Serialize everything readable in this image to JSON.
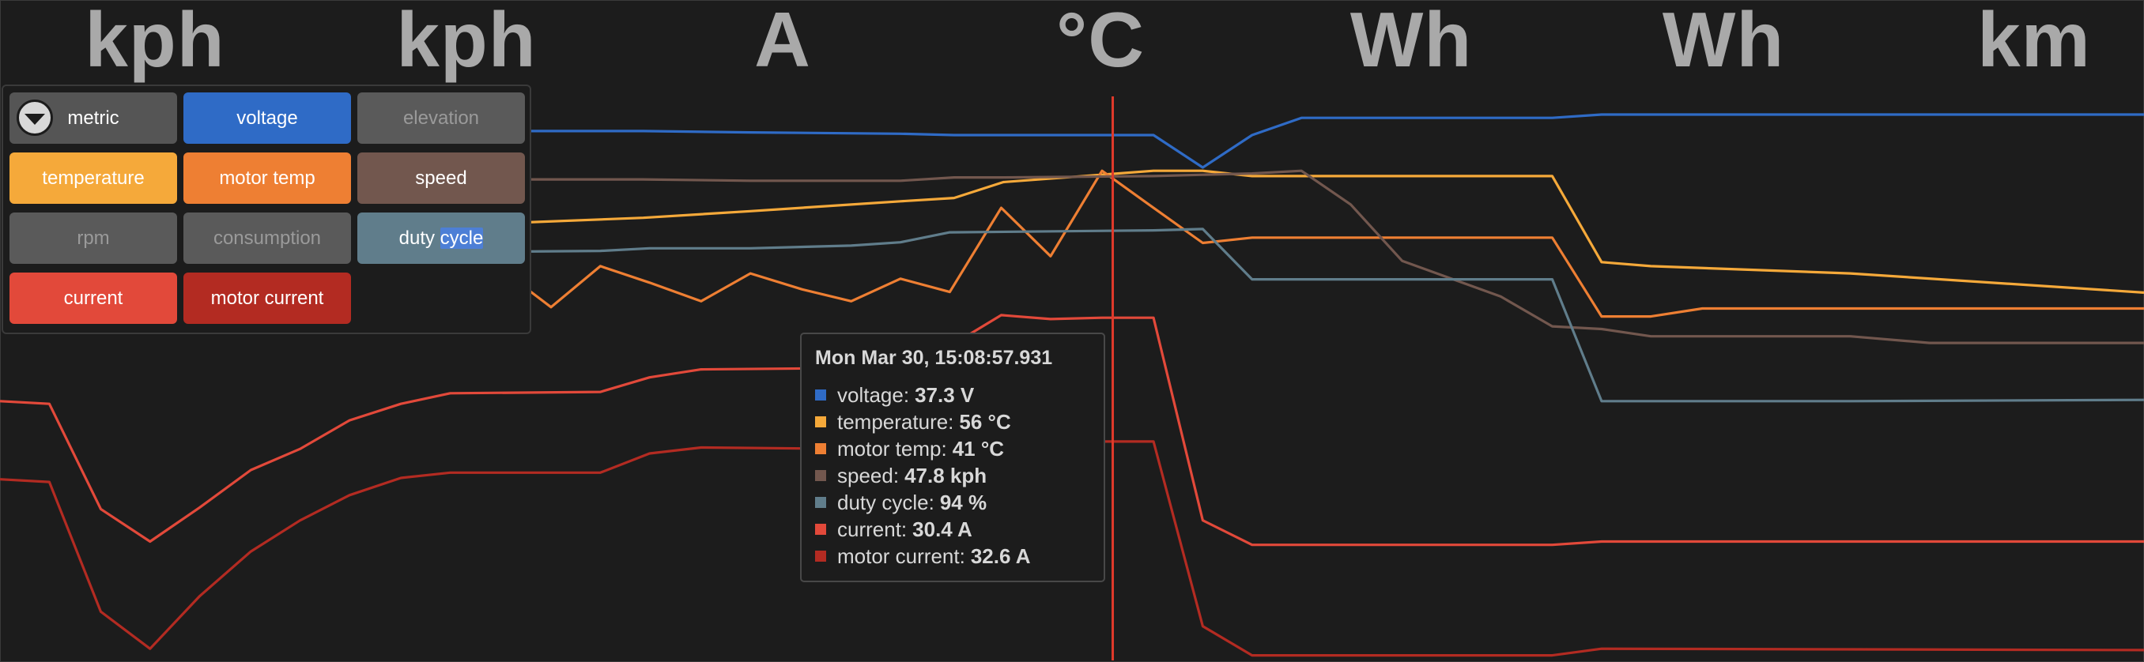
{
  "units": [
    "kph",
    "kph",
    "A",
    "°C",
    "Wh",
    "Wh",
    "km"
  ],
  "legend": {
    "toggle_icon": "chevron-down-circle-icon",
    "items": [
      {
        "label": "metric",
        "color": "#555555",
        "active": true
      },
      {
        "label": "voltage",
        "color": "#2f6bc6",
        "active": true
      },
      {
        "label": "elevation",
        "color": "#5a5a5a",
        "active": false
      },
      {
        "label": "temperature",
        "color": "#f5a93a",
        "active": true
      },
      {
        "label": "motor temp",
        "color": "#ee7f33",
        "active": true
      },
      {
        "label": "speed",
        "color": "#72574e",
        "active": true
      },
      {
        "label": "rpm",
        "color": "#5a5a5a",
        "active": false
      },
      {
        "label": "consumption",
        "color": "#5a5a5a",
        "active": false
      },
      {
        "label": "duty cycle",
        "label_plain": "duty ",
        "label_selected": "cycle",
        "color": "#607d8b",
        "active": true
      },
      {
        "label": "current",
        "color": "#e2493a",
        "active": true
      },
      {
        "label": "motor current",
        "color": "#b32b22",
        "active": true
      }
    ]
  },
  "tooltip": {
    "title": "Mon Mar 30, 15:08:57.931",
    "rows": [
      {
        "name": "voltage:",
        "value": "37.3 V",
        "color": "#2f6bc6"
      },
      {
        "name": "temperature:",
        "value": "56 °C",
        "color": "#f5a93a"
      },
      {
        "name": "motor temp:",
        "value": "41 °C",
        "color": "#ee7f33"
      },
      {
        "name": "speed:",
        "value": "47.8 kph",
        "color": "#72574e"
      },
      {
        "name": "duty cycle:",
        "value": "94 %",
        "color": "#607d8b"
      },
      {
        "name": "current:",
        "value": "30.4 A",
        "color": "#e2493a"
      },
      {
        "name": "motor current:",
        "value": "32.6 A",
        "color": "#b32b22"
      }
    ]
  },
  "chart_data": {
    "type": "line",
    "x_range": [
      0,
      1000
    ],
    "y_range": [
      0,
      100
    ],
    "cursor_x": 519,
    "series": [
      {
        "name": "voltage",
        "color": "#2f6bc6",
        "points": [
          [
            244,
            80.2
          ],
          [
            300,
            80.2
          ],
          [
            350,
            80
          ],
          [
            420,
            79.8
          ],
          [
            445,
            79.6
          ],
          [
            468,
            79.6
          ],
          [
            538,
            79.6
          ],
          [
            561,
            74.7
          ],
          [
            584,
            79.6
          ],
          [
            607,
            82.2
          ],
          [
            724,
            82.2
          ],
          [
            747,
            82.7
          ],
          [
            1000,
            82.7
          ]
        ]
      },
      {
        "name": "temperature",
        "color": "#f5a93a",
        "points": [
          [
            244,
            66.4
          ],
          [
            300,
            67.1
          ],
          [
            350,
            68.1
          ],
          [
            420,
            69.6
          ],
          [
            445,
            70.1
          ],
          [
            468,
            72.5
          ],
          [
            538,
            74.2
          ],
          [
            561,
            74.2
          ],
          [
            584,
            73.4
          ],
          [
            724,
            73.4
          ],
          [
            747,
            60.4
          ],
          [
            770,
            59.8
          ],
          [
            863,
            58.7
          ],
          [
            1000,
            55.8
          ]
        ]
      },
      {
        "name": "motor temp",
        "color": "#ee7f33",
        "points": [
          [
            244,
            56.8
          ],
          [
            257,
            53.6
          ],
          [
            280,
            59.8
          ],
          [
            303,
            57.3
          ],
          [
            327,
            54.5
          ],
          [
            350,
            58.7
          ],
          [
            374,
            56.3
          ],
          [
            397,
            54.5
          ],
          [
            420,
            57.9
          ],
          [
            443,
            55.9
          ],
          [
            467,
            68.6
          ],
          [
            490,
            61.3
          ],
          [
            514,
            74.2
          ],
          [
            538,
            68.6
          ],
          [
            561,
            63.3
          ],
          [
            584,
            64.1
          ],
          [
            724,
            64.1
          ],
          [
            747,
            52.2
          ],
          [
            770,
            52.2
          ],
          [
            794,
            53.4
          ],
          [
            1000,
            53.4
          ]
        ]
      },
      {
        "name": "speed",
        "color": "#72574e",
        "points": [
          [
            244,
            72.9
          ],
          [
            300,
            72.9
          ],
          [
            350,
            72.7
          ],
          [
            420,
            72.7
          ],
          [
            445,
            73.2
          ],
          [
            468,
            73.2
          ],
          [
            538,
            73.4
          ],
          [
            561,
            73.6
          ],
          [
            584,
            73.8
          ],
          [
            607,
            74.2
          ],
          [
            630,
            69.1
          ],
          [
            654,
            60.6
          ],
          [
            700,
            55.2
          ],
          [
            724,
            50.7
          ],
          [
            747,
            50.3
          ],
          [
            770,
            49.2
          ],
          [
            863,
            49.2
          ],
          [
            900,
            48.2
          ],
          [
            1000,
            48.2
          ]
        ]
      },
      {
        "name": "duty cycle",
        "color": "#607d8b",
        "points": [
          [
            244,
            62
          ],
          [
            280,
            62.1
          ],
          [
            303,
            62.5
          ],
          [
            350,
            62.5
          ],
          [
            397,
            62.9
          ],
          [
            420,
            63.4
          ],
          [
            443,
            64.9
          ],
          [
            538,
            65.2
          ],
          [
            561,
            65.4
          ],
          [
            584,
            57.8
          ],
          [
            724,
            57.8
          ],
          [
            747,
            39.4
          ],
          [
            863,
            39.4
          ],
          [
            1000,
            39.6
          ]
        ]
      },
      {
        "name": "current",
        "color": "#e2493a",
        "points": [
          [
            0,
            39.4
          ],
          [
            23,
            39
          ],
          [
            47,
            23.1
          ],
          [
            70,
            18.2
          ],
          [
            93,
            23.3
          ],
          [
            117,
            29
          ],
          [
            140,
            32.2
          ],
          [
            163,
            36.5
          ],
          [
            187,
            39
          ],
          [
            210,
            40.6
          ],
          [
            280,
            40.8
          ],
          [
            303,
            43
          ],
          [
            327,
            44.2
          ],
          [
            397,
            44.4
          ],
          [
            420,
            44.6
          ],
          [
            443,
            47.7
          ],
          [
            467,
            52.4
          ],
          [
            490,
            51.8
          ],
          [
            514,
            52
          ],
          [
            538,
            52
          ],
          [
            561,
            21.4
          ],
          [
            584,
            17.7
          ],
          [
            724,
            17.7
          ],
          [
            747,
            18.2
          ],
          [
            1000,
            18.2
          ]
        ]
      },
      {
        "name": "motor current",
        "color": "#b32b22",
        "points": [
          [
            0,
            27.6
          ],
          [
            23,
            27.2
          ],
          [
            47,
            7.6
          ],
          [
            70,
            2
          ],
          [
            93,
            9.9
          ],
          [
            117,
            16.7
          ],
          [
            140,
            21.4
          ],
          [
            163,
            25.2
          ],
          [
            187,
            27.8
          ],
          [
            210,
            28.6
          ],
          [
            280,
            28.6
          ],
          [
            303,
            31.5
          ],
          [
            327,
            32.4
          ],
          [
            397,
            32.2
          ],
          [
            467,
            32.2
          ],
          [
            514,
            33.3
          ],
          [
            538,
            33.3
          ],
          [
            561,
            5.4
          ],
          [
            584,
            1
          ],
          [
            724,
            1
          ],
          [
            747,
            2
          ],
          [
            1000,
            1.8
          ]
        ]
      }
    ]
  }
}
